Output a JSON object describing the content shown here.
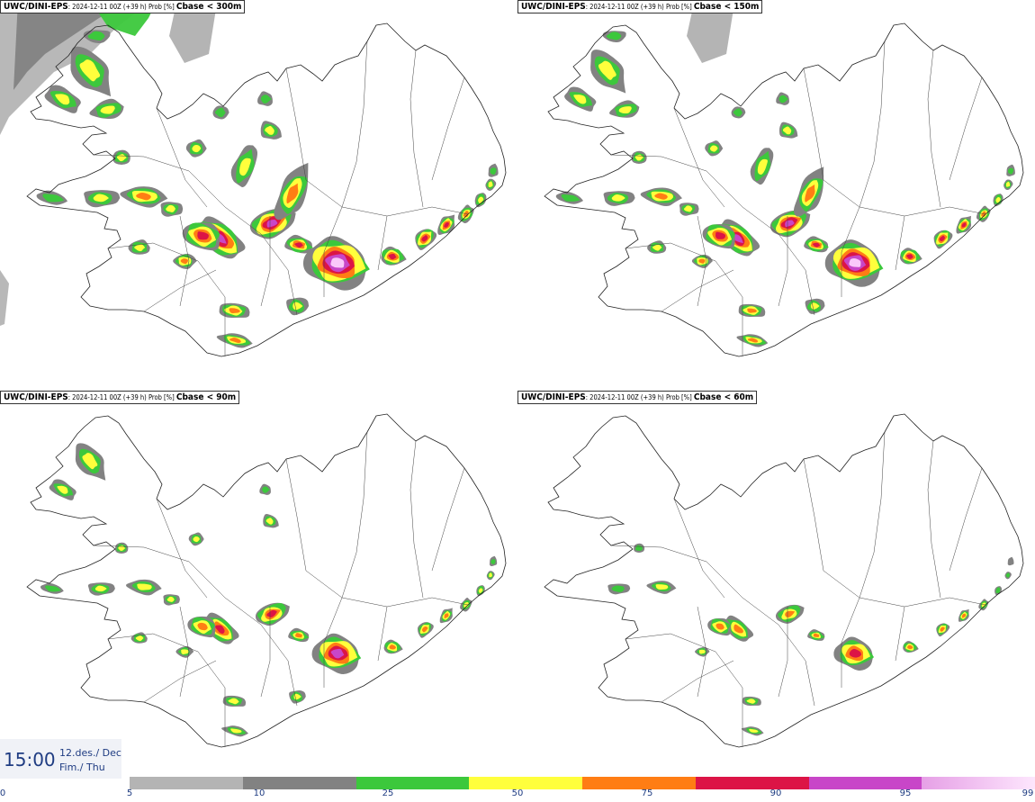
{
  "panels": [
    {
      "model": "UWC/DINI-EPS",
      "meta": ": 2024-12-11 00Z (+39 h) Prob [%] ",
      "param": "Cbase < 300m",
      "level": 4
    },
    {
      "model": "UWC/DINI-EPS",
      "meta": ": 2024-12-11 00Z (+39 h) Prob [%] ",
      "param": "Cbase < 150m",
      "level": 3
    },
    {
      "model": "UWC/DINI-EPS",
      "meta": ": 2024-12-11 00Z (+39 h) Prob [%] ",
      "param": "Cbase < 90m",
      "level": 2
    },
    {
      "model": "UWC/DINI-EPS",
      "meta": ": 2024-12-11 00Z (+39 h) Prob [%] ",
      "param": "Cbase < 60m",
      "level": 1
    }
  ],
  "time": {
    "clock": "15:00",
    "date_line1": "12.des./ Dec",
    "date_line2": "Fim./ Thu"
  },
  "legend": {
    "ticks": [
      "0",
      "5",
      "10",
      "25",
      "50",
      "75",
      "90",
      "95",
      "99"
    ],
    "colors": [
      "#b4b4b4",
      "#828282",
      "#3cc83c",
      "#ffff3c",
      "#ff7d14",
      "#dc1446",
      "#c846c8",
      "#fac8fa"
    ],
    "unit": "Prob [%]"
  },
  "icons": {
    "map": "iceland-outline-map"
  }
}
